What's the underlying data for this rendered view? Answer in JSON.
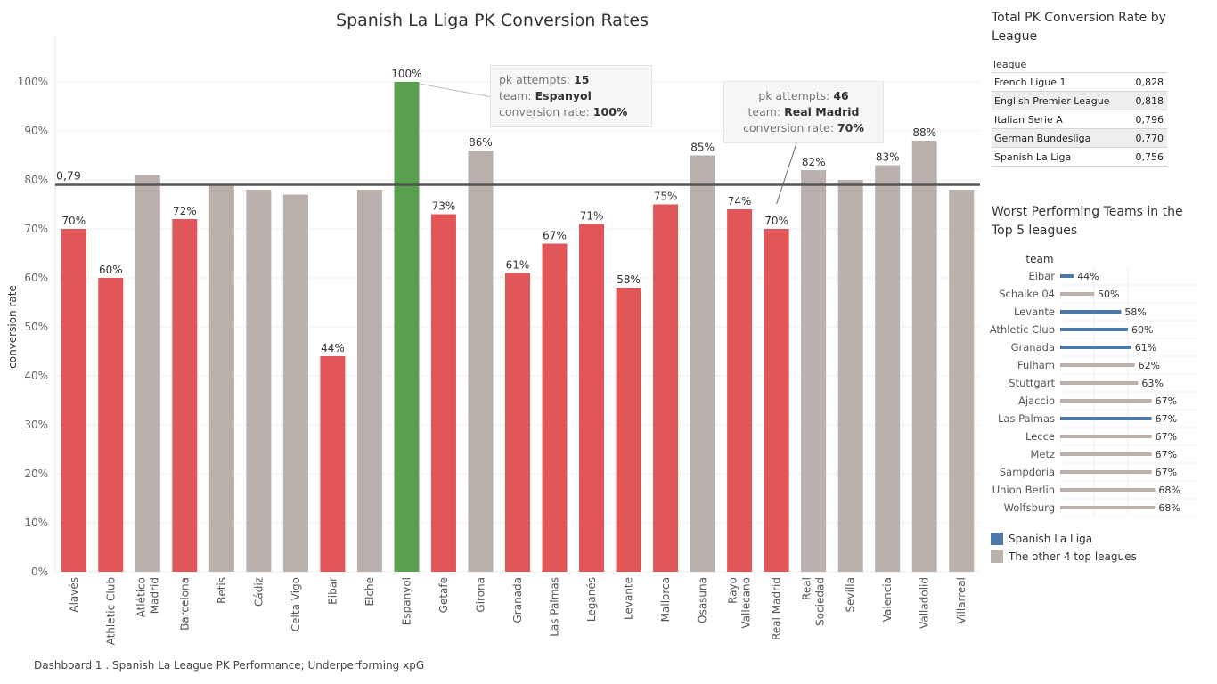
{
  "page_title": "Spanish La Liga PK Conversion Rates",
  "footer": "Dashboard 1 . Spanish La League PK Performance; Underperforming xpG",
  "chart_data": [
    {
      "type": "bar",
      "title": "Spanish La Liga PK Conversion Rates",
      "ylabel": "conversion rate",
      "xlabel": "",
      "ylim": [
        0,
        1.0
      ],
      "y_ticks": [
        "0%",
        "10%",
        "20%",
        "30%",
        "40%",
        "50%",
        "60%",
        "70%",
        "80%",
        "90%",
        "100%"
      ],
      "reference_line": {
        "value": 0.79,
        "label": "0,79"
      },
      "categories": [
        "Alavés",
        "Athletic Club",
        "Atlético Madrid",
        "Barcelona",
        "Betis",
        "Cádiz",
        "Celta Vigo",
        "Eibar",
        "Elche",
        "Espanyol",
        "Getafe",
        "Girona",
        "Granada",
        "Las Palmas",
        "Leganés",
        "Levante",
        "Mallorca",
        "Osasuna",
        "Rayo Vallecano",
        "Real Madrid",
        "Real Sociedad",
        "Sevilla",
        "Valencia",
        "Valladolid",
        "Villarreal"
      ],
      "category_lines": [
        [
          "Alavés"
        ],
        [
          "Athletic Club"
        ],
        [
          "Atlético",
          "Madrid"
        ],
        [
          "Barcelona"
        ],
        [
          "Betis"
        ],
        [
          "Cádiz"
        ],
        [
          "Celta Vigo"
        ],
        [
          "Eibar"
        ],
        [
          "Elche"
        ],
        [
          "Espanyol"
        ],
        [
          "Getafe"
        ],
        [
          "Girona"
        ],
        [
          "Granada"
        ],
        [
          "Las Palmas"
        ],
        [
          "Leganés"
        ],
        [
          "Levante"
        ],
        [
          "Mallorca"
        ],
        [
          "Osasuna"
        ],
        [
          "Rayo",
          "Vallecano"
        ],
        [
          "Real Madrid"
        ],
        [
          "Real",
          "Sociedad"
        ],
        [
          "Sevilla"
        ],
        [
          "Valencia"
        ],
        [
          "Valladolid"
        ],
        [
          "Villarreal"
        ]
      ],
      "values": [
        0.7,
        0.6,
        0.81,
        0.72,
        0.79,
        0.78,
        0.77,
        0.44,
        0.78,
        1.0,
        0.73,
        0.86,
        0.61,
        0.67,
        0.71,
        0.58,
        0.75,
        0.85,
        0.74,
        0.7,
        0.82,
        0.8,
        0.83,
        0.88,
        0.78
      ],
      "labels": [
        "70%",
        "60%",
        "",
        "72%",
        "",
        "",
        "",
        "44%",
        "",
        "100%",
        "73%",
        "86%",
        "61%",
        "67%",
        "71%",
        "58%",
        "75%",
        "85%",
        "74%",
        "70%",
        "82%",
        "",
        "83%",
        "88%",
        ""
      ],
      "bar_colors": [
        "#e15759",
        "#e15759",
        "#bab0ac",
        "#e15759",
        "#bab0ac",
        "#bab0ac",
        "#bab0ac",
        "#e15759",
        "#bab0ac",
        "#59a14f",
        "#e15759",
        "#bab0ac",
        "#e15759",
        "#e15759",
        "#e15759",
        "#e15759",
        "#e15759",
        "#bab0ac",
        "#e15759",
        "#e15759",
        "#bab0ac",
        "#bab0ac",
        "#bab0ac",
        "#bab0ac",
        "#bab0ac"
      ],
      "grid": true
    },
    {
      "type": "table",
      "title": "Total PK Conversion Rate by League",
      "column": "league",
      "rows": [
        {
          "league": "French Ligue 1",
          "value": "0,828"
        },
        {
          "league": "English Premier League",
          "value": "0,818"
        },
        {
          "league": "Italian Serie A",
          "value": "0,796"
        },
        {
          "league": "German Bundesliga",
          "value": "0,770"
        },
        {
          "league": "Spanish La Liga",
          "value": "0,756"
        }
      ]
    },
    {
      "type": "bar",
      "orientation": "horizontal",
      "title": "Worst Performing Teams in the Top 5 leagues",
      "column": "team",
      "categories": [
        "Eibar",
        "Schalke 04",
        "Levante",
        "Athletic Club",
        "Granada",
        "Fulham",
        "Stuttgart",
        "Ajaccio",
        "Las Palmas",
        "Lecce",
        "Metz",
        "Sampdoria",
        "Union Berlin",
        "Wolfsburg"
      ],
      "values": [
        0.44,
        0.5,
        0.58,
        0.6,
        0.61,
        0.62,
        0.63,
        0.67,
        0.67,
        0.67,
        0.67,
        0.67,
        0.68,
        0.68
      ],
      "labels": [
        "44%",
        "50%",
        "58%",
        "60%",
        "61%",
        "62%",
        "63%",
        "67%",
        "67%",
        "67%",
        "67%",
        "67%",
        "68%",
        "68%"
      ],
      "is_la_liga": [
        true,
        false,
        true,
        true,
        true,
        false,
        false,
        false,
        true,
        false,
        false,
        false,
        false,
        false
      ],
      "xlim": [
        0.4,
        0.7
      ]
    }
  ],
  "legend": {
    "items": [
      {
        "label": "Spanish La Liga",
        "color": "#4e79a7"
      },
      {
        "label": "The other 4 top leagues",
        "color": "#bab0ac"
      }
    ]
  },
  "tooltips": {
    "espanyol": {
      "attempts_label": "pk attempts:",
      "attempts": "15",
      "team_label": "team:",
      "team": "Espanyol",
      "rate_label": "conversion rate:",
      "rate": "100%"
    },
    "real_madrid": {
      "attempts_label": "pk attempts:",
      "attempts": "46",
      "team_label": "team:",
      "team": "Real Madrid",
      "rate_label": "conversion rate:",
      "rate": "70%"
    }
  },
  "colors": {
    "below_avg": "#e15759",
    "above_avg": "#bab0ac",
    "highlight": "#59a14f",
    "la_liga": "#4e79a7",
    "other_leagues": "#bab0ac",
    "ref_line": "#555555"
  }
}
